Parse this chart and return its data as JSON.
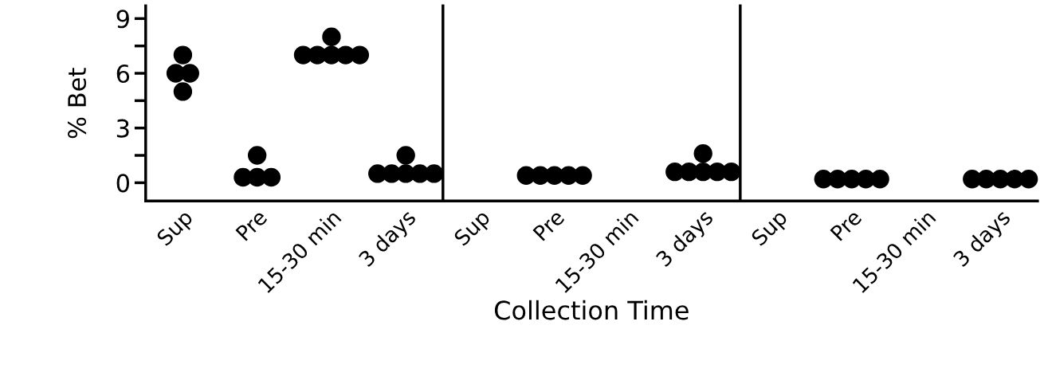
{
  "chart_data": [
    {
      "type": "scatter",
      "ylabel": "% Bet",
      "categories": [
        "Sup",
        "Pre",
        "15-30 min",
        "3 days"
      ],
      "ylim": [
        -1,
        9.7
      ],
      "yticks": [
        0,
        {
          "value": 1.5,
          "label": null
        },
        3,
        {
          "value": 4.5,
          "label": null
        },
        6,
        {
          "value": 7.5,
          "label": null
        },
        9
      ],
      "marker": "circle",
      "grid": false,
      "series": [
        {
          "color": "#000000",
          "x": [
            "Sup",
            "Sup",
            "Sup",
            "Sup",
            "Pre",
            "Pre",
            "Pre",
            "Pre",
            "15-30 min",
            "15-30 min",
            "15-30 min",
            "15-30 min",
            "15-30 min",
            "15-30 min",
            "3 days",
            "3 days",
            "3 days",
            "3 days",
            "3 days",
            "3 days"
          ],
          "values": [
            7,
            6,
            6,
            5,
            1.5,
            0.3,
            0.3,
            0.3,
            8,
            7,
            7,
            7,
            7,
            7,
            1.5,
            0.5,
            0.5,
            0.5,
            0.5,
            0.5
          ]
        }
      ]
    },
    {
      "type": "scatter",
      "xlabel": "Collection Time",
      "categories": [
        "Sup",
        "Pre",
        "15-30 min",
        "3 days"
      ],
      "ylim": [
        -1,
        9.7
      ],
      "tick_labels": "x",
      "marker": "circle",
      "grid": false,
      "series": [
        {
          "color": "#000000",
          "x": [
            "Pre",
            "Pre",
            "Pre",
            "Pre",
            "Pre",
            "3 days",
            "3 days",
            "3 days",
            "3 days",
            "3 days",
            "3 days"
          ],
          "values": [
            0.4,
            0.4,
            0.4,
            0.4,
            0.4,
            1.6,
            0.6,
            0.6,
            0.6,
            0.6,
            0.6
          ]
        }
      ]
    },
    {
      "type": "scatter",
      "categories": [
        "Sup",
        "Pre",
        "15-30 min",
        "3 days"
      ],
      "ylim": [
        -1,
        9.7
      ],
      "tick_labels": "x",
      "marker": "circle",
      "grid": false,
      "series": [
        {
          "color": "#000000",
          "x": [
            "Pre",
            "Pre",
            "Pre",
            "Pre",
            "Pre",
            "3 days",
            "3 days",
            "3 days",
            "3 days",
            "3 days"
          ],
          "values": [
            0.2,
            0.2,
            0.2,
            0.2,
            0.2,
            0.2,
            0.2,
            0.2,
            0.2,
            0.2
          ]
        }
      ]
    }
  ]
}
